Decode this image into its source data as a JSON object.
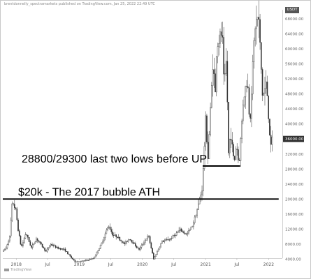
{
  "header": {
    "text": "brentdonnelly_spectramarkets published on TradingView.com, Jan 25, 2022 22:49 UTC"
  },
  "branding": {
    "logo_text": "TradingView"
  },
  "chart_data": {
    "type": "candlestick",
    "currency": "USDT",
    "ylim": [
      0,
      70000
    ],
    "y_ticks": [
      "68000.00",
      "64000.00",
      "60000.00",
      "56000.00",
      "52000.00",
      "48000.00",
      "44000.00",
      "40000.00",
      "36000.00",
      "32000.00",
      "28000.00",
      "24000.00",
      "20000.00",
      "16000.00",
      "12000.00",
      "8000.00",
      "4000.00"
    ],
    "x_ticks": [
      "2018",
      "Jul",
      "2019",
      "Jul",
      "2020",
      "Jul",
      "2021",
      "Jul",
      "2022"
    ],
    "x_range": [
      "2017-10-15",
      "2022-03-05"
    ],
    "last_price": 36000,
    "series": [
      {
        "date": "2017-10-20",
        "price": 6000
      },
      {
        "date": "2017-11-10",
        "price": 7000
      },
      {
        "date": "2017-12-01",
        "price": 10000
      },
      {
        "date": "2017-12-17",
        "price": 19500
      },
      {
        "date": "2018-01-05",
        "price": 17000
      },
      {
        "date": "2018-01-20",
        "price": 11500
      },
      {
        "date": "2018-02-06",
        "price": 7000
      },
      {
        "date": "2018-03-05",
        "price": 11000
      },
      {
        "date": "2018-04-05",
        "price": 7000
      },
      {
        "date": "2018-05-05",
        "price": 9500
      },
      {
        "date": "2018-06-29",
        "price": 6000
      },
      {
        "date": "2018-07-25",
        "price": 8000
      },
      {
        "date": "2018-09-01",
        "price": 7000
      },
      {
        "date": "2018-10-15",
        "price": 6500
      },
      {
        "date": "2018-11-20",
        "price": 4500
      },
      {
        "date": "2018-12-15",
        "price": 3300
      },
      {
        "date": "2019-02-01",
        "price": 3500
      },
      {
        "date": "2019-04-01",
        "price": 4200
      },
      {
        "date": "2019-05-15",
        "price": 8000
      },
      {
        "date": "2019-06-26",
        "price": 13000
      },
      {
        "date": "2019-07-20",
        "price": 10500
      },
      {
        "date": "2019-08-15",
        "price": 10000
      },
      {
        "date": "2019-09-25",
        "price": 8000
      },
      {
        "date": "2019-10-26",
        "price": 9500
      },
      {
        "date": "2019-12-18",
        "price": 6500
      },
      {
        "date": "2020-02-12",
        "price": 10300
      },
      {
        "date": "2020-03-13",
        "price": 4000
      },
      {
        "date": "2020-04-30",
        "price": 8700
      },
      {
        "date": "2020-06-15",
        "price": 9300
      },
      {
        "date": "2020-08-15",
        "price": 11800
      },
      {
        "date": "2020-09-20",
        "price": 10500
      },
      {
        "date": "2020-10-25",
        "price": 13000
      },
      {
        "date": "2020-11-25",
        "price": 18000
      },
      {
        "date": "2020-12-20",
        "price": 23000
      },
      {
        "date": "2021-01-08",
        "price": 41000
      },
      {
        "date": "2021-01-22",
        "price": 31000
      },
      {
        "date": "2021-02-20",
        "price": 57000
      },
      {
        "date": "2021-03-05",
        "price": 48000
      },
      {
        "date": "2021-03-13",
        "price": 61000
      },
      {
        "date": "2021-04-14",
        "price": 64500
      },
      {
        "date": "2021-04-25",
        "price": 49000
      },
      {
        "date": "2021-05-10",
        "price": 58000
      },
      {
        "date": "2021-05-19",
        "price": 31000
      },
      {
        "date": "2021-06-01",
        "price": 38000
      },
      {
        "date": "2021-06-22",
        "price": 29300
      },
      {
        "date": "2021-07-05",
        "price": 35000
      },
      {
        "date": "2021-07-20",
        "price": 28800
      },
      {
        "date": "2021-08-15",
        "price": 47000
      },
      {
        "date": "2021-09-07",
        "price": 52000
      },
      {
        "date": "2021-09-21",
        "price": 40000
      },
      {
        "date": "2021-10-20",
        "price": 66000
      },
      {
        "date": "2021-11-10",
        "price": 69000
      },
      {
        "date": "2021-12-04",
        "price": 47000
      },
      {
        "date": "2021-12-27",
        "price": 51000
      },
      {
        "date": "2022-01-10",
        "price": 40000
      },
      {
        "date": "2022-01-22",
        "price": 33000
      },
      {
        "date": "2022-01-25",
        "price": 36000
      }
    ],
    "annotations": [
      {
        "text": "28800/29300 last two lows before UP",
        "price": 28800,
        "from": "2020-12-15",
        "to": "2021-07-20"
      },
      {
        "text": "$20k - The 2017 bubble ATH",
        "price": 20000,
        "from": "2017-10-15",
        "to": "2022-02-28"
      }
    ]
  }
}
